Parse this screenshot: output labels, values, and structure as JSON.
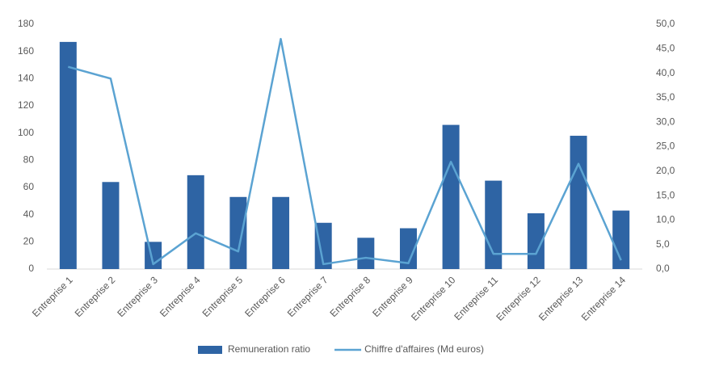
{
  "chart_data": {
    "type": "bar-line",
    "categories": [
      "Entreprise 1",
      "Entreprise 2",
      "Entreprise 3",
      "Entreprise 4",
      "Entreprise 5",
      "Entreprise 6",
      "Entreprise 7",
      "Entreprise 8",
      "Entreprise 9",
      "Entreprise 10",
      "Entreprise 11",
      "Entreprise 12",
      "Entreprise 13",
      "Entreprise 14"
    ],
    "series": [
      {
        "name": "Remuneration ratio",
        "type": "bar",
        "color": "#2e64a4",
        "values": [
          167,
          64,
          20,
          69,
          53,
          53,
          34,
          23,
          30,
          106,
          65,
          41,
          98,
          43
        ]
      },
      {
        "name": "Chiffre d'affaires (Md euros)",
        "type": "line",
        "axis": "y2",
        "color": "#5ba3d2",
        "values": [
          41.3,
          38.9,
          1.0,
          7.3,
          3.6,
          47.0,
          1.0,
          2.3,
          1.2,
          21.9,
          3.1,
          3.1,
          21.5,
          1.8
        ]
      }
    ],
    "ylim": [
      0,
      180
    ],
    "yticks": [
      0,
      20,
      40,
      60,
      80,
      100,
      120,
      140,
      160,
      180
    ],
    "y2lim": [
      0,
      50
    ],
    "y2ticks": [
      {
        "value": 0,
        "label": "0,0"
      },
      {
        "value": 5,
        "label": "5,0"
      },
      {
        "value": 10,
        "label": "10,0"
      },
      {
        "value": 15,
        "label": "15,0"
      },
      {
        "value": 20,
        "label": "20,0"
      },
      {
        "value": 25,
        "label": "25,0"
      },
      {
        "value": 30,
        "label": "30,0"
      },
      {
        "value": 35,
        "label": "35,0"
      },
      {
        "value": 40,
        "label": "40,0"
      },
      {
        "value": 45,
        "label": "45,0"
      },
      {
        "value": 50,
        "label": "50,0"
      }
    ],
    "grid": false,
    "legend": "bottom"
  }
}
